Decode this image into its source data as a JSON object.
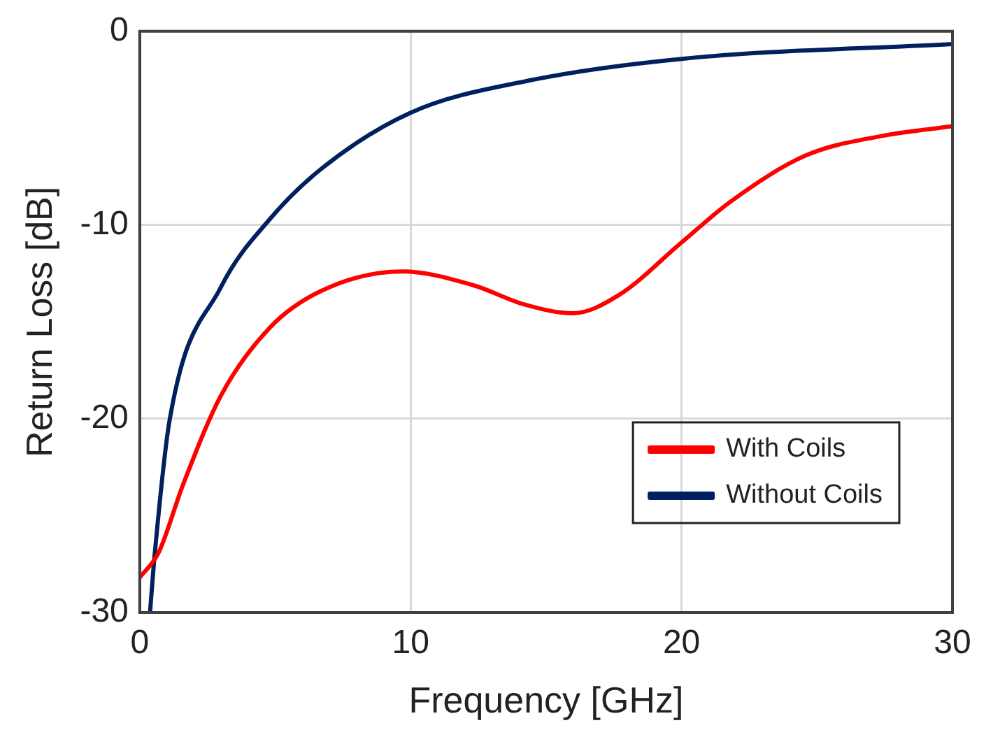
{
  "chart_data": {
    "type": "line",
    "xlabel": "Frequency [GHz]",
    "ylabel": "Return Loss [dB]",
    "xlim": [
      0,
      30
    ],
    "xticks": [
      0,
      10,
      20,
      30
    ],
    "ylim": [
      -30,
      0
    ],
    "yticks": [
      -30,
      -20,
      -10,
      0
    ],
    "grid": true,
    "legend": "right",
    "marker": "none",
    "line_style": "solid",
    "series": [
      {
        "name": "With Coils",
        "color": "#ff0000",
        "x": [
          0,
          0.7,
          1.6,
          3,
          4.8,
          6.7,
          9.7,
          12.3,
          14.2,
          16,
          17.7,
          20,
          21.8,
          24.6,
          27.4,
          30
        ],
        "values": [
          -28.2,
          -26.9,
          -23.4,
          -18.8,
          -15.3,
          -13.4,
          -12.4,
          -13.1,
          -14.1,
          -14.55,
          -13.6,
          -10.9,
          -8.8,
          -6.4,
          -5.4,
          -4.9
        ]
      },
      {
        "name": "Without Coils",
        "color": "#002060",
        "x": [
          0.38,
          0.56,
          1.1,
          3,
          4.8,
          6.7,
          10,
          14.3,
          20,
          30
        ],
        "values": [
          -30,
          -26.9,
          -20.1,
          -13.2,
          -9.7,
          -7.1,
          -4.2,
          -2.56,
          -1.42,
          -0.66
        ]
      }
    ]
  }
}
